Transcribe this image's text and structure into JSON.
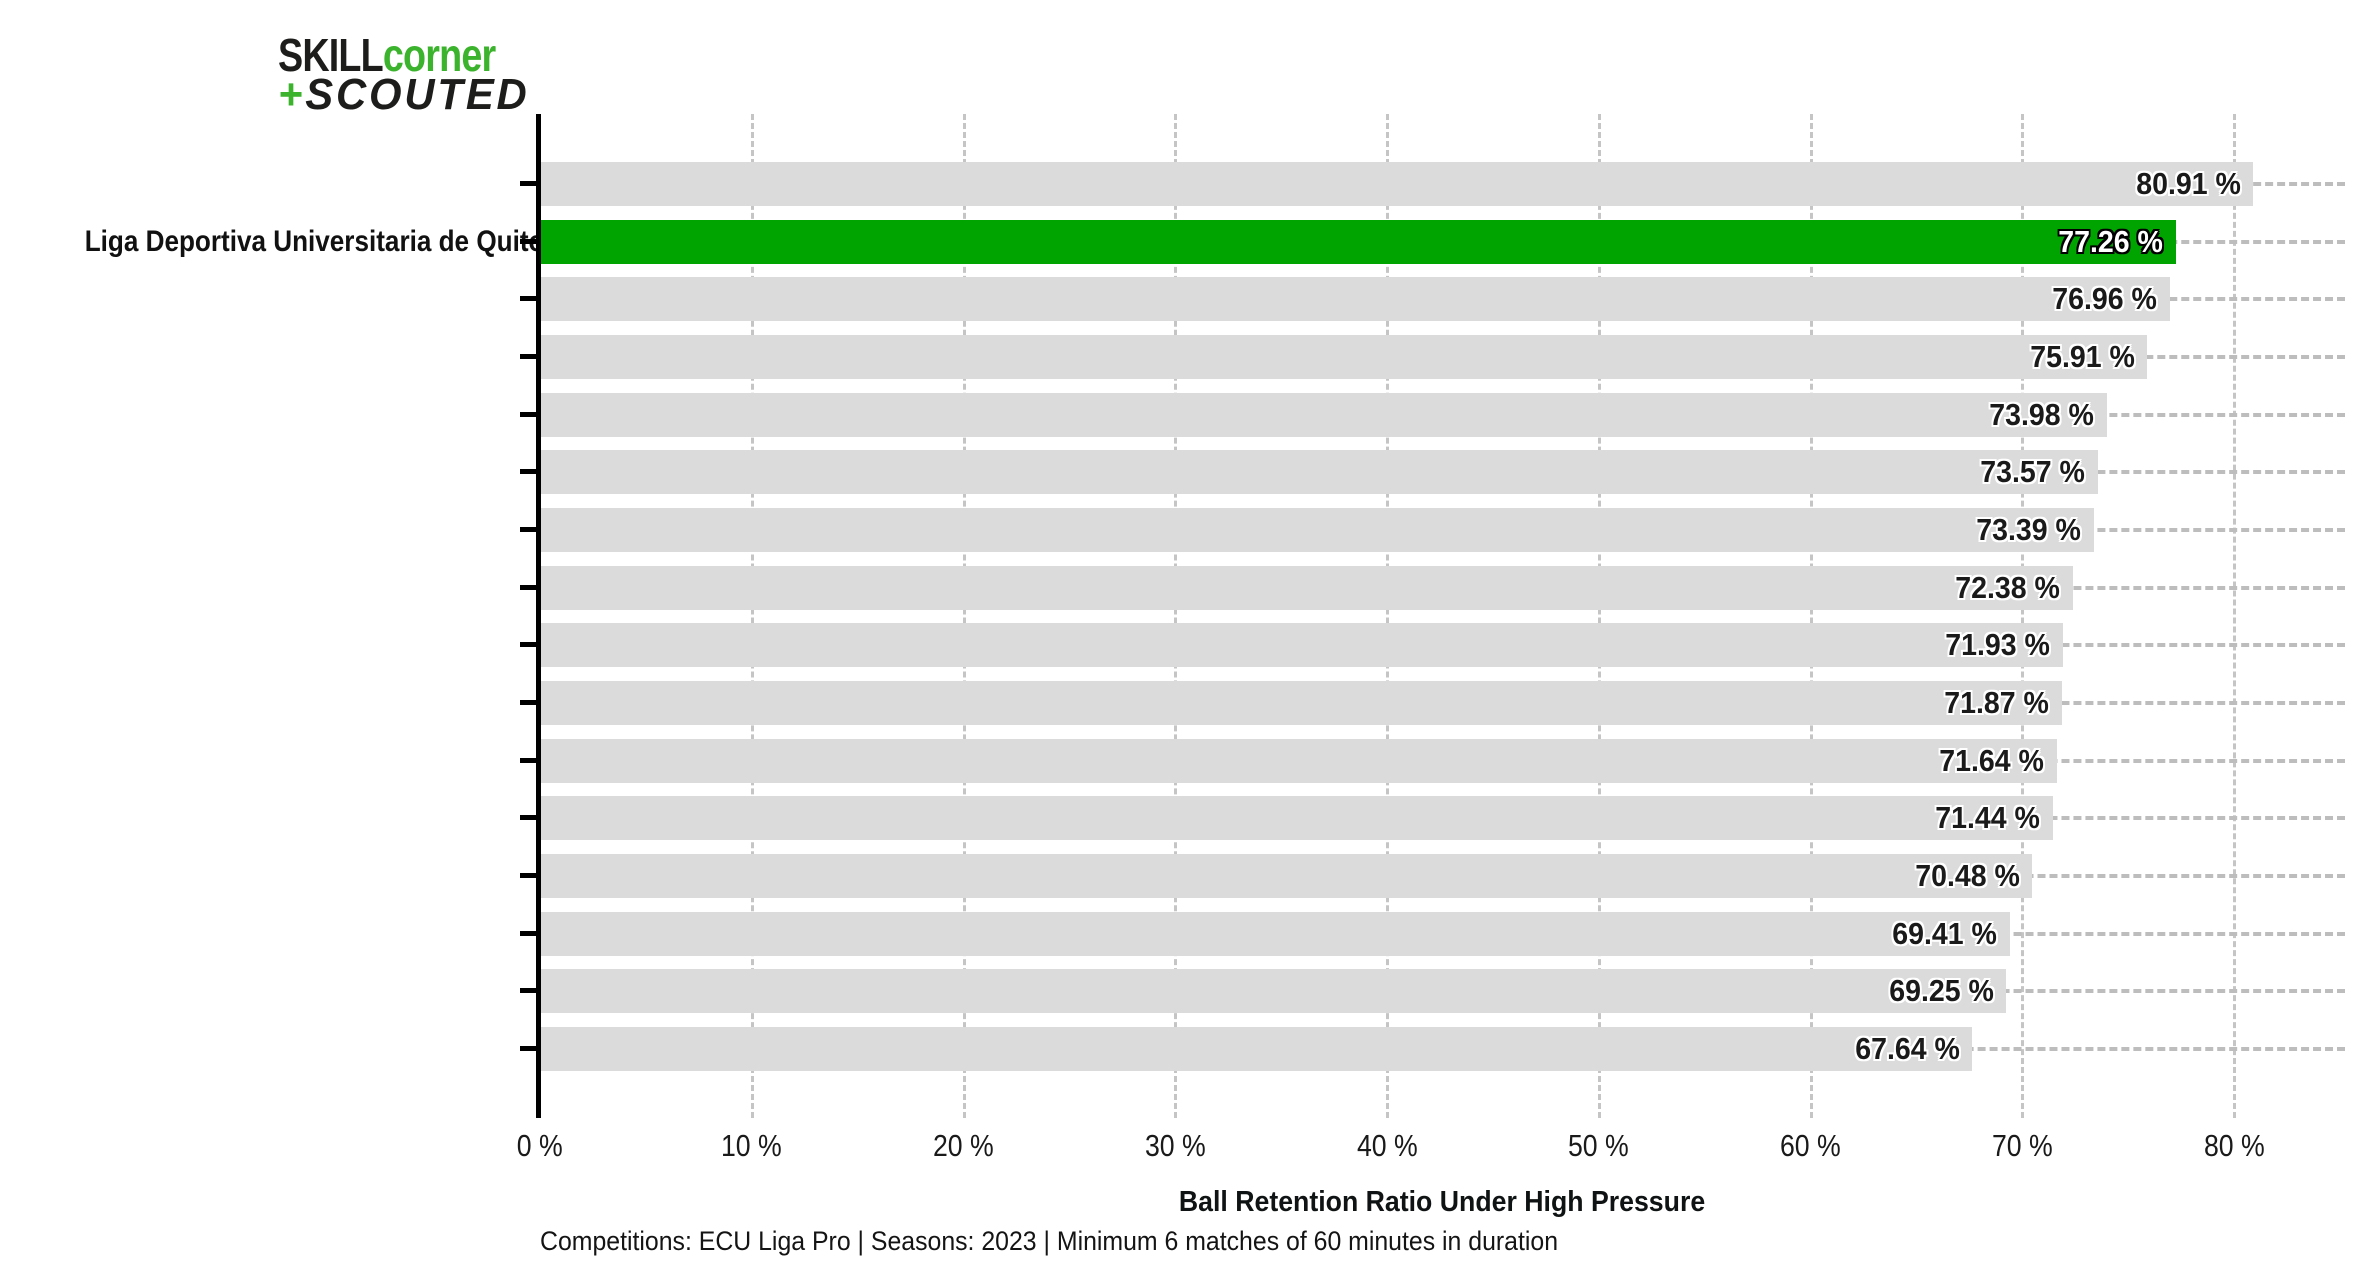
{
  "logo": {
    "line1_black": "SKILL",
    "line1_green": "corner",
    "line2_green": "+",
    "line2_black": "SCOUTED"
  },
  "chart_data": {
    "type": "bar",
    "orientation": "horizontal",
    "title": "Ball Retention Ratio Under High Pressure",
    "xlabel": "Ball Retention Ratio Under High Pressure",
    "categories": [
      "",
      "Liga Deportiva Universitaria de Quito",
      "",
      "",
      "",
      "",
      "",
      "",
      "",
      "",
      "",
      "",
      "",
      "",
      "",
      ""
    ],
    "values": [
      80.91,
      77.26,
      76.96,
      75.91,
      73.98,
      73.57,
      73.39,
      72.38,
      71.93,
      71.87,
      71.64,
      71.44,
      70.48,
      69.41,
      69.25,
      67.64
    ],
    "value_suffix": " %",
    "highlight_index": 1,
    "x_ticks": [
      "0 %",
      "10 %",
      "20 %",
      "30 %",
      "40 %",
      "50 %",
      "60 %",
      "70 %",
      "80 %"
    ],
    "x_tick_values": [
      0,
      10,
      20,
      30,
      40,
      50,
      60,
      70,
      80
    ],
    "xlim": [
      0,
      85.24
    ],
    "grid": "vertical-dashed",
    "legend": "none",
    "colors": {
      "bar": "#dbdbdb",
      "highlight": "#00a400",
      "gridline": "#c5c5c5",
      "leader": "#bdbdbd",
      "axis": "#000000",
      "value_text": "#1a1a1a",
      "value_text_highlight": "#ffffff",
      "logo_green": "#3cb32d",
      "logo_black": "#1d1d1b"
    }
  },
  "footer": {
    "note": "Competitions: ECU Liga Pro | Seasons: 2023 | Minimum 6 matches of 60 minutes in duration"
  }
}
